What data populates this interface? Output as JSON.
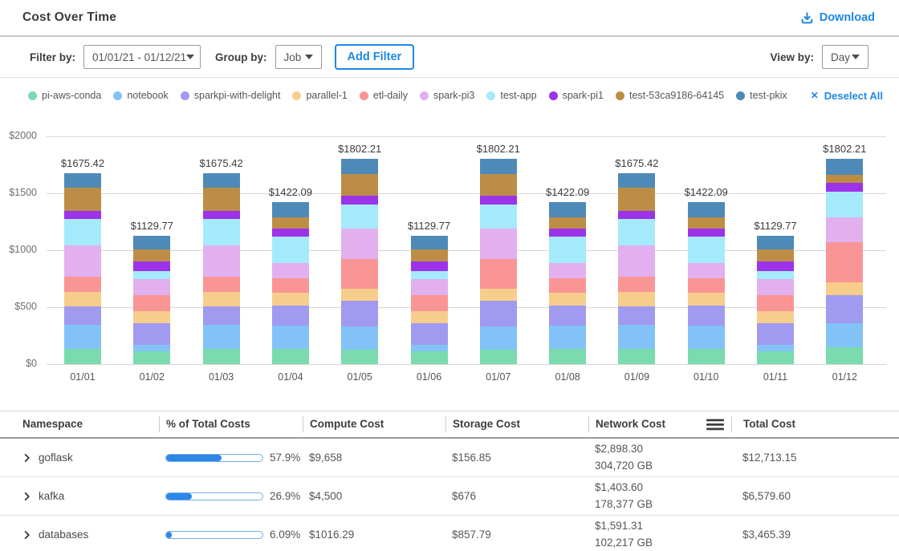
{
  "header": {
    "title": "Cost Over Time",
    "download_label": "Download"
  },
  "filters": {
    "filter_by_label": "Filter by:",
    "date_range": "01/01/21 - 01/12/21",
    "group_by_label": "Group by:",
    "group_by_value": "Job",
    "add_filter_label": "Add Filter",
    "view_by_label": "View by:",
    "view_by_value": "Day"
  },
  "legend": {
    "deselect_label": "Deselect All",
    "deselect_icon": "✕",
    "items": [
      {
        "label": "pi-aws-conda",
        "color": "#79dbae"
      },
      {
        "label": "notebook",
        "color": "#82c2f7"
      },
      {
        "label": "sparkpi-with-delight",
        "color": "#a09af0"
      },
      {
        "label": "parallel-1",
        "color": "#f7cd8b"
      },
      {
        "label": "etl-daily",
        "color": "#fa9595"
      },
      {
        "label": "spark-pi3",
        "color": "#e2afef"
      },
      {
        "label": "test-app",
        "color": "#a5eafa"
      },
      {
        "label": "spark-pi1",
        "color": "#9c32e9"
      },
      {
        "label": "test-53ca9186-64145",
        "color": "#bd8d46"
      },
      {
        "label": "test-pkix",
        "color": "#4e8ab8"
      }
    ]
  },
  "chart_data": {
    "type": "bar",
    "stacked": true,
    "title": "Cost Over Time",
    "xlabel": "",
    "ylabel": "",
    "ylim": [
      0,
      2000
    ],
    "grid": true,
    "legend_position": "top",
    "x": [
      "01/01",
      "01/02",
      "01/03",
      "01/04",
      "01/05",
      "01/06",
      "01/07",
      "01/08",
      "01/09",
      "01/10",
      "01/11",
      "01/12"
    ],
    "total_labels": [
      "$1675.42",
      "$1129.77",
      "$1675.42",
      "$1422.09",
      "$1802.21",
      "$1129.77",
      "$1802.21",
      "$1422.09",
      "$1675.42",
      "$1422.09",
      "$1129.77",
      "$1802.21"
    ],
    "totals": [
      1675.42,
      1129.77,
      1675.42,
      1422.09,
      1802.21,
      1129.77,
      1802.21,
      1422.09,
      1675.42,
      1422.09,
      1129.77,
      1802.21
    ],
    "yticks": [
      {
        "label": "$0",
        "value": 0
      },
      {
        "label": "$500",
        "value": 500
      },
      {
        "label": "$1000",
        "value": 1000
      },
      {
        "label": "$1500",
        "value": 1500
      },
      {
        "label": "$2000",
        "value": 2000
      }
    ],
    "series": [
      {
        "name": "pi-aws-conda",
        "color": "#79dbae",
        "values": [
          135,
          110,
          135,
          133,
          130,
          110,
          130,
          133,
          135,
          133,
          110,
          151
        ]
      },
      {
        "name": "notebook",
        "color": "#82c2f7",
        "values": [
          211,
          60,
          211,
          208,
          200,
          60,
          200,
          208,
          211,
          208,
          60,
          205
        ]
      },
      {
        "name": "sparkpi-with-delight",
        "color": "#a09af0",
        "values": [
          164,
          190,
          164,
          174,
          228,
          190,
          228,
          174,
          164,
          174,
          190,
          248
        ]
      },
      {
        "name": "parallel-1",
        "color": "#f7cd8b",
        "values": [
          122,
          105,
          122,
          109,
          105,
          105,
          105,
          109,
          122,
          109,
          105,
          113
        ]
      },
      {
        "name": "etl-daily",
        "color": "#fa9595",
        "values": [
          139,
          140,
          139,
          133,
          258,
          140,
          258,
          133,
          139,
          133,
          140,
          356
        ]
      },
      {
        "name": "spark-pi3",
        "color": "#e2afef",
        "values": [
          269,
          140,
          269,
          133,
          270,
          140,
          270,
          133,
          269,
          133,
          140,
          216
        ]
      },
      {
        "name": "test-app",
        "color": "#a5eafa",
        "values": [
          232,
          70,
          232,
          230,
          210,
          70,
          210,
          230,
          232,
          230,
          70,
          227
        ]
      },
      {
        "name": "spark-pi1",
        "color": "#9c32e9",
        "values": [
          76,
          85,
          76,
          73,
          75,
          85,
          75,
          73,
          76,
          73,
          85,
          76
        ]
      },
      {
        "name": "test-53ca9186-64145",
        "color": "#bd8d46",
        "values": [
          205,
          110,
          205,
          96,
          196,
          110,
          196,
          96,
          205,
          96,
          110,
          70
        ]
      },
      {
        "name": "test-pkix",
        "color": "#4e8ab8",
        "values": [
          122.42,
          119.77,
          122.42,
          133.09,
          130.21,
          119.77,
          130.21,
          133.09,
          122.42,
          133.09,
          119.77,
          140.21
        ]
      }
    ]
  },
  "table": {
    "columns": [
      "Namespace",
      "% of Total Costs",
      "Compute Cost",
      "Storage Cost",
      "Network  Cost",
      "Total Cost"
    ],
    "rows": [
      {
        "namespace": "goflask",
        "pct_label": "57.9%",
        "pct_value": 57.9,
        "compute": "$9,658",
        "storage": "$156.85",
        "network_cost": "$2,898.30",
        "network_gb": "304,720 GB",
        "total": "$12,713.15"
      },
      {
        "namespace": "kafka",
        "pct_label": "26.9%",
        "pct_value": 26.9,
        "compute": "$4,500",
        "storage": "$676",
        "network_cost": "$1,403.60",
        "network_gb": "178,377 GB",
        "total": "$6,579.60"
      },
      {
        "namespace": "databases",
        "pct_label": "6.09%",
        "pct_value": 6.09,
        "compute": "$1016.29",
        "storage": "$857.79",
        "network_cost": "$1,591.31",
        "network_gb": "102,217 GB",
        "total": "$3,465.39"
      }
    ]
  }
}
